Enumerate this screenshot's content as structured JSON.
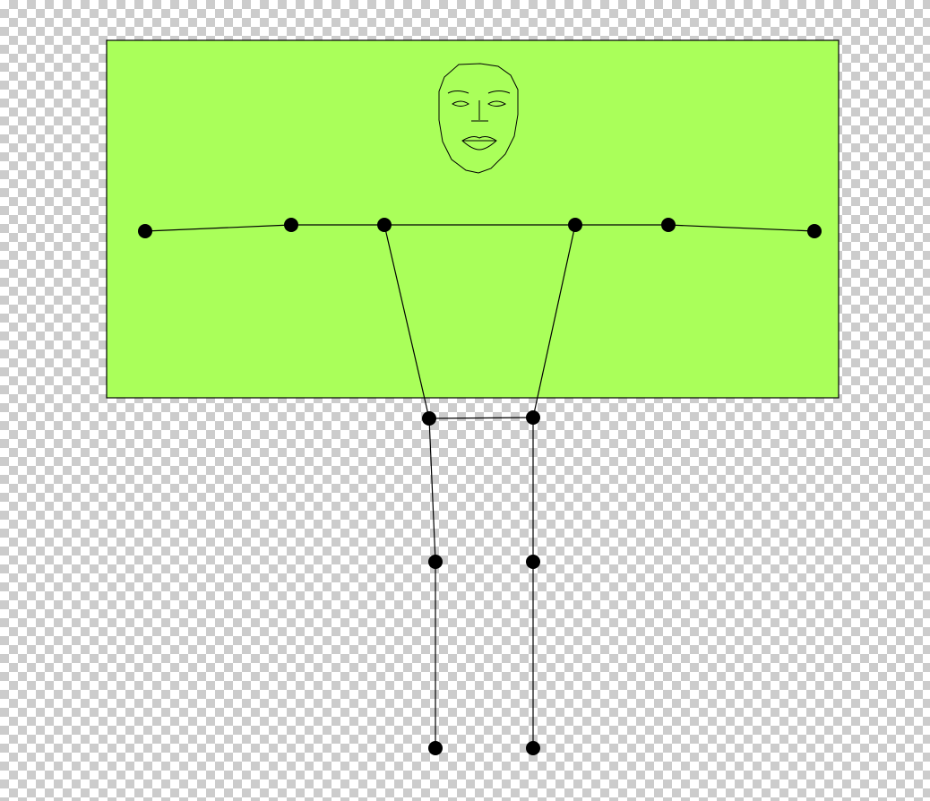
{
  "scene": {
    "background": "transparency-checkerboard",
    "rectangle_color": "#aaff5a",
    "rectangle_border_color": "#000000",
    "line_color": "#000000",
    "joint_color": "#000000"
  },
  "skeleton": {
    "joint_names": [
      "left-wrist",
      "left-elbow",
      "left-shoulder",
      "right-shoulder",
      "right-elbow",
      "right-wrist",
      "left-hip",
      "right-hip",
      "left-knee",
      "right-knee",
      "left-ankle",
      "right-ankle"
    ],
    "bone_names": [
      "left-forearm",
      "left-upper-arm",
      "shoulder-line",
      "right-upper-arm",
      "right-forearm",
      "left-torso",
      "right-torso",
      "hip-line",
      "left-thigh",
      "right-thigh",
      "left-shin",
      "right-shin"
    ]
  },
  "face": {
    "icon": "face-outline-icon"
  }
}
